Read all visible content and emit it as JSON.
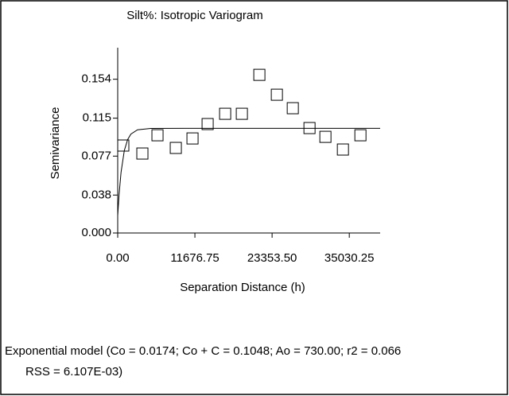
{
  "chart_data": {
    "type": "scatter",
    "title": "Silt%: Isotropic Variogram",
    "x_label": "Separation Distance (h)",
    "y_label": "Semivariance",
    "x": [
      843,
      3732,
      6019,
      8788,
      11316,
      13603,
      16251,
      18779,
      21428,
      24076,
      26484,
      29012,
      31419,
      34067,
      36715
    ],
    "values": [
      0.0876,
      0.0796,
      0.0979,
      0.0852,
      0.0947,
      0.1091,
      0.1194,
      0.1194,
      0.1584,
      0.1385,
      0.125,
      0.1051,
      0.0963,
      0.0836,
      0.0979
    ],
    "color": "#000000",
    "model_line": {
      "x": [
        0,
        200,
        500,
        1000,
        1500,
        2000,
        3000,
        5000,
        10000,
        39700
      ],
      "values": [
        0.0174,
        0.0383,
        0.0608,
        0.0826,
        0.0936,
        0.0991,
        0.1034,
        0.1047,
        0.1048,
        0.1048
      ]
    },
    "xlim": [
      0,
      39700
    ],
    "ylim": [
      0,
      0.18
    ],
    "xticks": [
      {
        "value": 0,
        "label": "0.00"
      },
      11676.75,
      {
        "value": 23353.5,
        "label": "23353.50"
      },
      35030.25
    ],
    "yticks": [
      {
        "value": 0,
        "label": "0.000"
      },
      0.038,
      0.077,
      0.115,
      0.154
    ],
    "annotation": [
      "Exponential model (Co = 0.0174; Co + C = 0.1048; Ao = 730.00; r2 = 0.066",
      "RSS = 6.107E-03)"
    ]
  }
}
